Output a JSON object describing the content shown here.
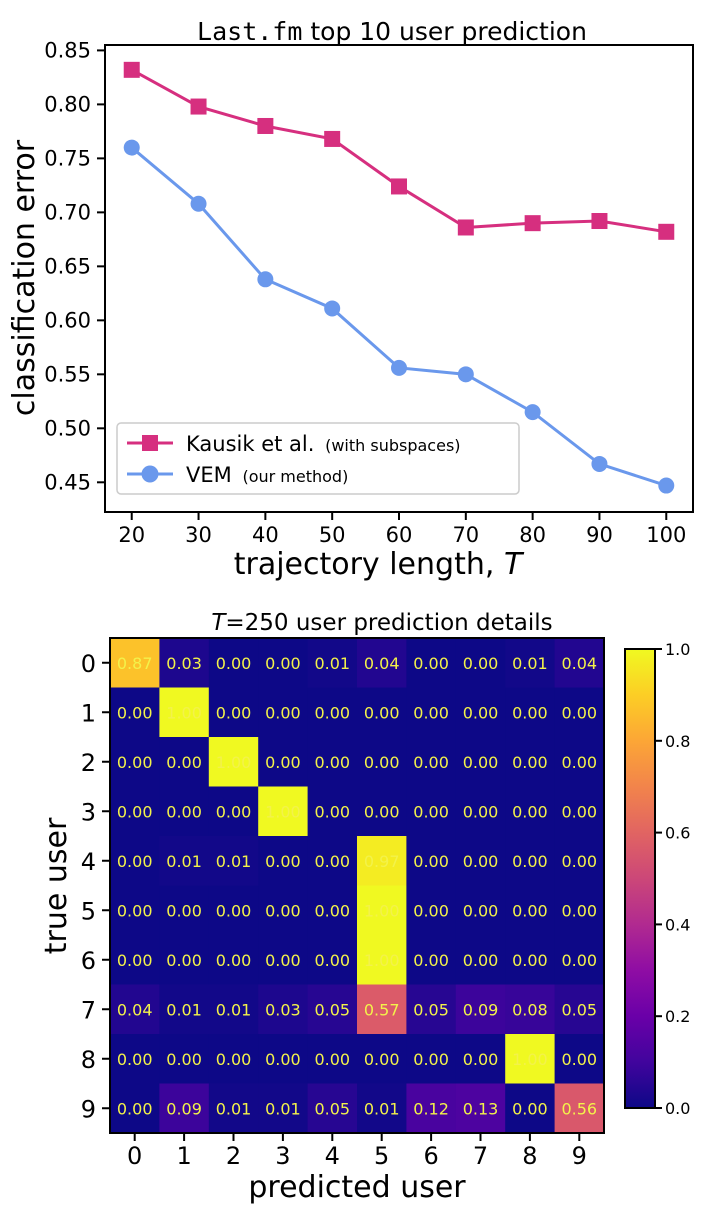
{
  "chart_data": [
    {
      "type": "line",
      "title_mono": "Last.fm",
      "title_rest": " top 10 user prediction",
      "xlabel_main": "trajectory length, ",
      "xlabel_var": "T",
      "ylabel": "classification error",
      "x": [
        20,
        30,
        40,
        50,
        60,
        70,
        80,
        90,
        100
      ],
      "xticks": [
        "20",
        "30",
        "40",
        "50",
        "60",
        "70",
        "80",
        "90",
        "100"
      ],
      "yticks": [
        "0.45",
        "0.50",
        "0.55",
        "0.60",
        "0.65",
        "0.70",
        "0.75",
        "0.80",
        "0.85"
      ],
      "xlim": [
        16,
        104
      ],
      "ylim": [
        0.4225,
        0.855
      ],
      "legend_position": "lower-left",
      "series": [
        {
          "name": "Kausik et al.",
          "name_note": "(with subspaces)",
          "color": "#d62f7f",
          "marker": "square",
          "values": [
            0.832,
            0.798,
            0.78,
            0.768,
            0.724,
            0.686,
            0.69,
            0.692,
            0.682
          ]
        },
        {
          "name": "VEM",
          "name_note": "(our method)",
          "color": "#6a98ec",
          "marker": "circle",
          "values": [
            0.76,
            0.708,
            0.638,
            0.611,
            0.556,
            0.55,
            0.515,
            0.467,
            0.447
          ]
        }
      ]
    },
    {
      "type": "heatmap",
      "title_var": "T",
      "title_rest": "=250 user prediction details",
      "xlabel": "predicted user",
      "ylabel": "true user",
      "x_categories": [
        "0",
        "1",
        "2",
        "3",
        "4",
        "5",
        "6",
        "7",
        "8",
        "9"
      ],
      "y_categories": [
        "0",
        "1",
        "2",
        "3",
        "4",
        "5",
        "6",
        "7",
        "8",
        "9"
      ],
      "colormap": "plasma",
      "vmin": 0.0,
      "vmax": 1.0,
      "colorbar_ticks": [
        "0.0",
        "0.2",
        "0.4",
        "0.6",
        "0.8",
        "1.0"
      ],
      "colorbar_values": [
        0.0,
        0.2,
        0.4,
        0.6,
        0.8,
        1.0
      ],
      "annotation_color": "#f3f24a",
      "values": [
        [
          0.87,
          0.03,
          0.0,
          0.0,
          0.01,
          0.04,
          0.0,
          0.0,
          0.01,
          0.04
        ],
        [
          0.0,
          1.0,
          0.0,
          0.0,
          0.0,
          0.0,
          0.0,
          0.0,
          0.0,
          0.0
        ],
        [
          0.0,
          0.0,
          1.0,
          0.0,
          0.0,
          0.0,
          0.0,
          0.0,
          0.0,
          0.0
        ],
        [
          0.0,
          0.0,
          0.0,
          1.0,
          0.0,
          0.0,
          0.0,
          0.0,
          0.0,
          0.0
        ],
        [
          0.0,
          0.01,
          0.01,
          0.0,
          0.0,
          0.97,
          0.0,
          0.0,
          0.0,
          0.0
        ],
        [
          0.0,
          0.0,
          0.0,
          0.0,
          0.0,
          1.0,
          0.0,
          0.0,
          0.0,
          0.0
        ],
        [
          0.0,
          0.0,
          0.0,
          0.0,
          0.0,
          1.0,
          0.0,
          0.0,
          0.0,
          0.0
        ],
        [
          0.04,
          0.01,
          0.01,
          0.03,
          0.05,
          0.57,
          0.05,
          0.09,
          0.08,
          0.05
        ],
        [
          0.0,
          0.0,
          0.0,
          0.0,
          0.0,
          0.0,
          0.0,
          0.0,
          1.0,
          0.0
        ],
        [
          0.0,
          0.09,
          0.01,
          0.01,
          0.05,
          0.01,
          0.12,
          0.13,
          0.0,
          0.56
        ]
      ],
      "labels": [
        [
          "0.87",
          "0.03",
          "0.00",
          "0.00",
          "0.01",
          "0.04",
          "0.00",
          "0.00",
          "0.01",
          "0.04"
        ],
        [
          "0.00",
          "1.00",
          "0.00",
          "0.00",
          "0.00",
          "0.00",
          "0.00",
          "0.00",
          "0.00",
          "0.00"
        ],
        [
          "0.00",
          "0.00",
          "1.00",
          "0.00",
          "0.00",
          "0.00",
          "0.00",
          "0.00",
          "0.00",
          "0.00"
        ],
        [
          "0.00",
          "0.00",
          "0.00",
          "1.00",
          "0.00",
          "0.00",
          "0.00",
          "0.00",
          "0.00",
          "0.00"
        ],
        [
          "0.00",
          "0.01",
          "0.01",
          "0.00",
          "0.00",
          "0.97",
          "0.00",
          "0.00",
          "0.00",
          "0.00"
        ],
        [
          "0.00",
          "0.00",
          "0.00",
          "0.00",
          "0.00",
          "1.00",
          "0.00",
          "0.00",
          "0.00",
          "0.00"
        ],
        [
          "0.00",
          "0.00",
          "0.00",
          "0.00",
          "0.00",
          "1.00",
          "0.00",
          "0.00",
          "0.00",
          "0.00"
        ],
        [
          "0.04",
          "0.01",
          "0.01",
          "0.03",
          "0.05",
          "0.57",
          "0.05",
          "0.09",
          "0.08",
          "0.05"
        ],
        [
          "0.00",
          "0.00",
          "0.00",
          "0.00",
          "0.00",
          "0.00",
          "0.00",
          "0.00",
          "1.00",
          "0.00"
        ],
        [
          "0.00",
          "0.09",
          "0.01",
          "0.01",
          "0.05",
          "0.01",
          "0.12",
          "0.13",
          "0.00",
          "0.56"
        ]
      ]
    }
  ]
}
